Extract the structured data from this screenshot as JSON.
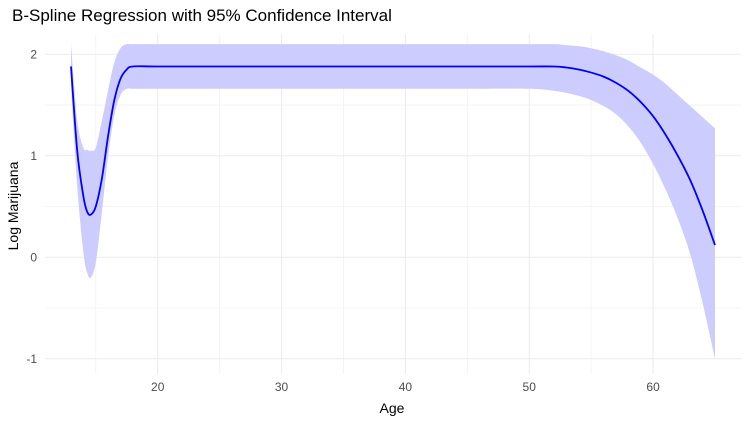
{
  "chart_data": {
    "type": "line",
    "title": "B-Spline Regression with 95% Confidence Interval",
    "xlabel": "Age",
    "ylabel": "Log Marijuana",
    "xlim": [
      10.9,
      67.1
    ],
    "ylim": [
      -1.15,
      2.2
    ],
    "x_ticks": [
      20,
      30,
      40,
      50,
      60
    ],
    "y_ticks": [
      -1,
      0,
      1,
      2
    ],
    "x_tick_labels": [
      "20",
      "30",
      "40",
      "50",
      "60"
    ],
    "y_tick_labels": [
      "-1",
      "0",
      "1",
      "2"
    ],
    "grid": true,
    "legend": "none",
    "colors": {
      "line": "#0000ff",
      "band": "#ccccff",
      "grid": "#ebebeb"
    },
    "series": [
      {
        "x": [
          13,
          13.5,
          14,
          14.3,
          14.6,
          15,
          15.5,
          16,
          16.5,
          17,
          17.5,
          18,
          20,
          25,
          30,
          35,
          40,
          45,
          50,
          52,
          53,
          54,
          55,
          56,
          57,
          58,
          59,
          60,
          61,
          62,
          63,
          64,
          65
        ],
        "y": [
          1.88,
          1.05,
          0.6,
          0.45,
          0.42,
          0.5,
          0.78,
          1.2,
          1.55,
          1.76,
          1.85,
          1.88,
          1.88,
          1.88,
          1.88,
          1.88,
          1.88,
          1.88,
          1.88,
          1.88,
          1.87,
          1.85,
          1.82,
          1.78,
          1.72,
          1.64,
          1.53,
          1.39,
          1.21,
          1.0,
          0.76,
          0.46,
          0.12
        ],
        "lower": [
          1.7,
          0.7,
          0.05,
          -0.15,
          -0.2,
          -0.05,
          0.45,
          1.0,
          1.4,
          1.6,
          1.66,
          1.66,
          1.66,
          1.66,
          1.66,
          1.66,
          1.66,
          1.66,
          1.66,
          1.64,
          1.62,
          1.59,
          1.55,
          1.49,
          1.41,
          1.29,
          1.13,
          0.92,
          0.67,
          0.38,
          0.03,
          -0.45,
          -1.0
        ],
        "upper": [
          2.1,
          1.35,
          1.08,
          1.06,
          1.05,
          1.08,
          1.35,
          1.65,
          1.92,
          2.06,
          2.1,
          2.1,
          2.1,
          2.1,
          2.1,
          2.1,
          2.1,
          2.1,
          2.1,
          2.1,
          2.09,
          2.08,
          2.06,
          2.03,
          1.99,
          1.94,
          1.87,
          1.8,
          1.71,
          1.6,
          1.49,
          1.38,
          1.27
        ]
      }
    ]
  }
}
